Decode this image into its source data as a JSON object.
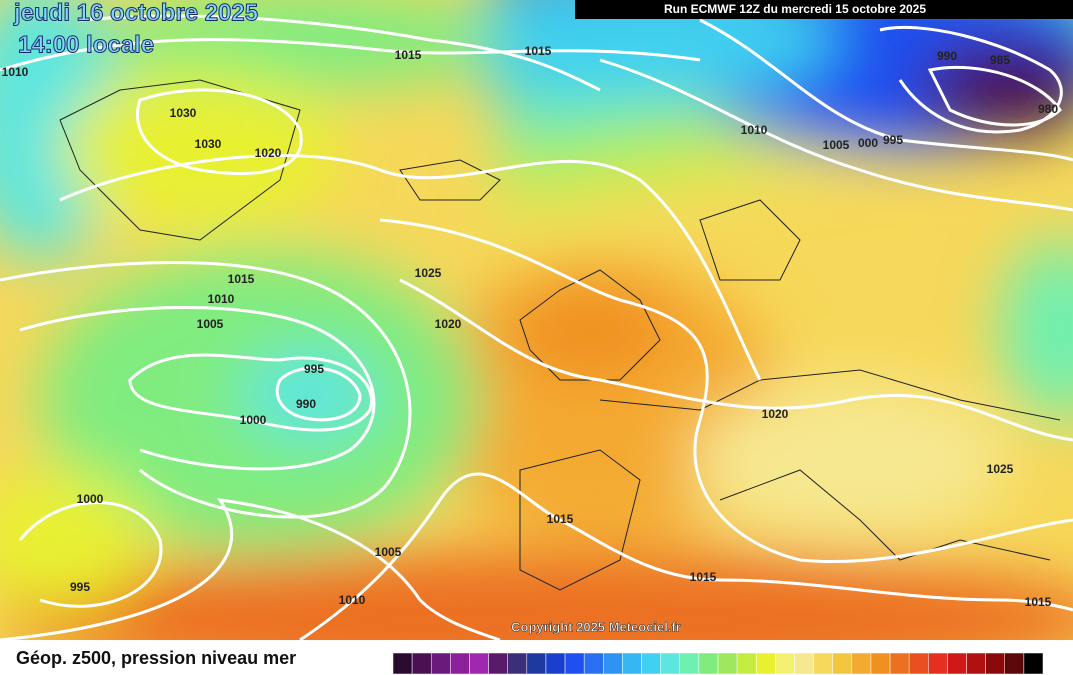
{
  "header": {
    "date": "jeudi 16 octobre 2025",
    "time": "14:00 locale",
    "run": "Run ECMWF 12Z du mercredi 15 octobre 2025"
  },
  "isobars": {
    "labels": [
      1010,
      1015,
      1015,
      990,
      985,
      980,
      1030,
      1030,
      1020,
      1010,
      1005,
      "000",
      995,
      1015,
      1010,
      1005,
      1025,
      1020,
      995,
      990,
      1000,
      1020,
      1025,
      1000,
      1015,
      1005,
      1015,
      995,
      1010,
      1015
    ]
  },
  "copyright": "Copyright 2025 Meteociel.fr",
  "footer": {
    "title": "Géop. z500, pression niveau mer"
  },
  "color_scale": [
    "#2b0a2f",
    "#4a1052",
    "#6a1a7a",
    "#8c1f9a",
    "#a028b0",
    "#5a1a6a",
    "#3b2f7a",
    "#1f3a9e",
    "#1a3fcf",
    "#1f4ff0",
    "#2a6ef2",
    "#2f93f2",
    "#35b5f2",
    "#40d0f0",
    "#5ce6e0",
    "#6ef0b0",
    "#80ec80",
    "#9ee860",
    "#c4ec40",
    "#e8f030",
    "#f4f070",
    "#f6e890",
    "#f6d85a",
    "#f4c640",
    "#f4aa30",
    "#f09020",
    "#ec7020",
    "#e85020",
    "#e43020",
    "#d01818",
    "#b01010",
    "#8a0a0a",
    "#5a0808",
    "#000000"
  ]
}
